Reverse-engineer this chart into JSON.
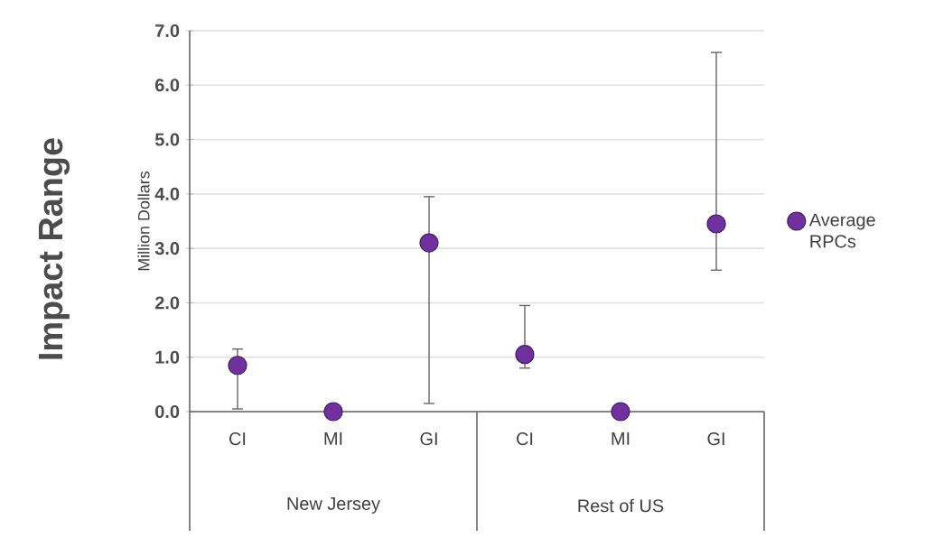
{
  "chart_data": {
    "type": "scatter",
    "title": "Impact Range",
    "ylabel": "Million Dollars",
    "categories": [
      "CI",
      "MI",
      "GI",
      "CI",
      "MI",
      "GI"
    ],
    "annotations": [
      "New Jersey",
      "Rest of US"
    ],
    "series": [
      {
        "name": "Average RPCs",
        "color": "#7030a0",
        "values": [
          0.85,
          0,
          3.1,
          1.05,
          0,
          3.45
        ],
        "errors": [
          [
            0.05,
            1.15
          ],
          null,
          [
            0.15,
            3.95
          ],
          [
            0.8,
            1.95
          ],
          null,
          [
            2.6,
            6.6
          ]
        ]
      }
    ],
    "ylim": [
      0,
      7
    ],
    "yticks": [
      {
        "value": 0,
        "label": "0.0"
      },
      {
        "value": 1,
        "label": "1.0"
      },
      {
        "value": 2,
        "label": "2.0"
      },
      {
        "value": 3,
        "label": "3.0"
      },
      {
        "value": 4,
        "label": "4.0"
      },
      {
        "value": 5,
        "label": "5.0"
      },
      {
        "value": 6,
        "label": "6.0"
      },
      {
        "value": 7,
        "label": "7.0"
      }
    ],
    "grid": "y",
    "legend": "right",
    "marker": "circle"
  }
}
